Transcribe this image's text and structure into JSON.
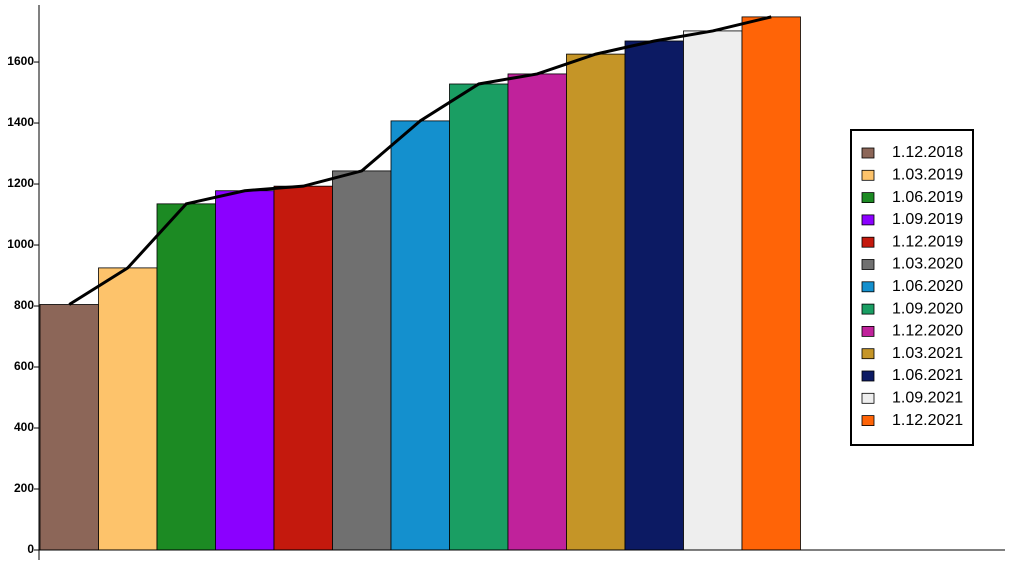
{
  "chart_data": {
    "type": "bar",
    "categories": [
      "1.12.2018",
      "1.03.2019",
      "1.06.2019",
      "1.09.2019",
      "1.12.2019",
      "1.03.2020",
      "1.06.2020",
      "1.09.2020",
      "1.12.2020",
      "1.03.2021",
      "1.06.2021",
      "1.09.2021",
      "1.12.2021"
    ],
    "values": [
      805,
      925,
      1135,
      1178,
      1193,
      1243,
      1407,
      1528,
      1561,
      1626,
      1669,
      1702,
      1748
    ],
    "colors": [
      "#8c6658",
      "#fdc36b",
      "#1c8a23",
      "#8b00ff",
      "#c4190d",
      "#707070",
      "#1490ce",
      "#1a9e63",
      "#c0229b",
      "#c59527",
      "#0c1a63",
      "#eeeeee",
      "#ff6407"
    ],
    "line_color": "#000000",
    "ylim": [
      0,
      1787
    ],
    "yticks": [
      0,
      200,
      400,
      600,
      800,
      1000,
      1200,
      1400,
      1600
    ],
    "legend": "right"
  }
}
